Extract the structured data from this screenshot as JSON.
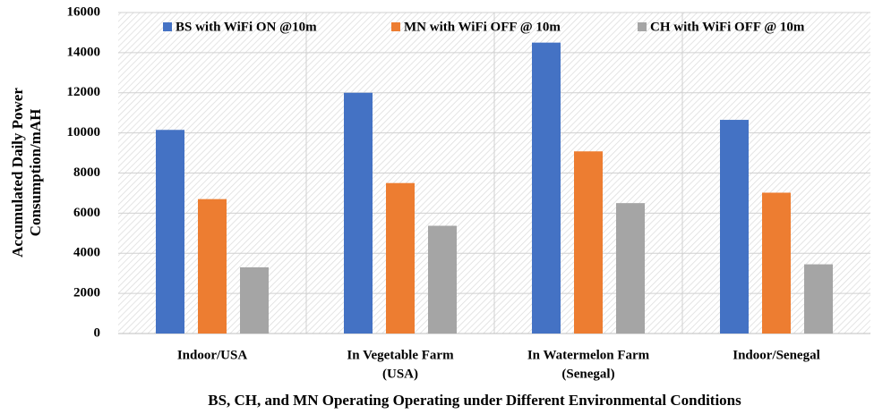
{
  "chart_data": {
    "type": "bar",
    "ylabel": [
      "Accumulated Daily Power",
      "Consumption/mAH"
    ],
    "xlabel": "BS, CH, and MN Operating Operating under Different Environmental Conditions",
    "categories": [
      [
        "Indoor/USA"
      ],
      [
        "In Vegetable Farm",
        "(USA)"
      ],
      [
        "In Watermelon Farm",
        "(Senegal)"
      ],
      [
        "Indoor/Senegal"
      ]
    ],
    "series": [
      {
        "name": "BS with WiFi ON @10m",
        "color": "#4472c4",
        "values": [
          10150,
          12000,
          14500,
          10650
        ]
      },
      {
        "name": "MN with WiFi OFF @ 10m",
        "color": "#ed7d31",
        "values": [
          6700,
          7500,
          9080,
          7020
        ]
      },
      {
        "name": "CH with WiFi OFF @ 10m",
        "color": "#a5a5a5",
        "values": [
          3300,
          5370,
          6500,
          3450
        ]
      }
    ],
    "ylim": [
      0,
      16000
    ],
    "yticks": [
      0,
      2000,
      4000,
      6000,
      8000,
      10000,
      12000,
      14000,
      16000
    ],
    "grid": true,
    "legend": "top"
  }
}
